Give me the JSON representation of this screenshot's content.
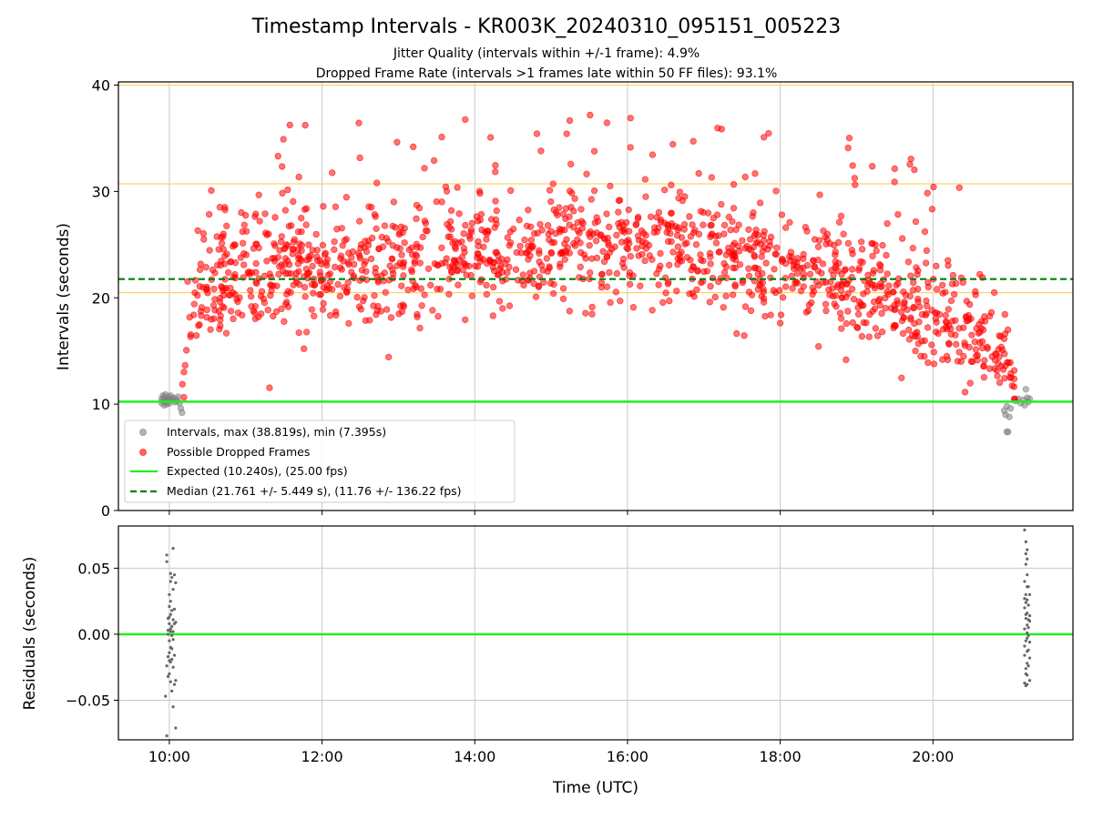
{
  "title": "Timestamp Intervals - KR003K_20240310_095151_005223",
  "subtitle_1": "Jitter Quality (intervals within +/-1 frame): 4.9%",
  "subtitle_2": "Dropped Frame Rate (intervals >1 frames late within 50 FF files): 93.1%",
  "colors": {
    "normal": "#808080",
    "dropped": "#ff0000",
    "expected": "#00ff00",
    "median": "#008000",
    "frame_band": "#ffd36a",
    "grid": "#c8c8c8"
  },
  "chart_data": [
    {
      "type": "scatter",
      "name": "intervals",
      "xlabel": "",
      "ylabel": "Intervals (seconds)",
      "xlim": [
        "09:20",
        "21:50"
      ],
      "ylim": [
        0,
        40.3
      ],
      "x_ticks": [
        "10:00",
        "12:00",
        "14:00",
        "16:00",
        "18:00",
        "20:00"
      ],
      "y_ticks": [
        0,
        10,
        20,
        30,
        40
      ],
      "grid": true,
      "frame_band_lines": [
        10.24,
        20.48,
        30.72,
        40.0
      ],
      "legend_position": "lower-left",
      "legend": [
        "Intervals, max (38.819s), min (7.395s)",
        "Possible Dropped Frames",
        "Expected (10.240s), (25.00 fps)",
        "Median (21.761 +/- 5.449 s), (11.76 +/- 136.22 fps)"
      ],
      "expected_value": 10.24,
      "median_value": 21.761,
      "max_value": 38.819,
      "min_value": 7.395,
      "series": [
        {
          "name": "Intervals, max (38.819s), min (7.395s)",
          "points": [
            [
              "09:54",
              10.5
            ],
            [
              "09:54",
              10.1
            ],
            [
              "09:55",
              10.8
            ],
            [
              "09:55",
              10.3
            ],
            [
              "09:56",
              9.9
            ],
            [
              "09:56",
              10.6
            ],
            [
              "09:57",
              10.2
            ],
            [
              "09:57",
              10.9
            ],
            [
              "09:58",
              10.4
            ],
            [
              "09:58",
              10.0
            ],
            [
              "09:59",
              10.7
            ],
            [
              "09:59",
              10.3
            ],
            [
              "10:00",
              10.5
            ],
            [
              "10:00",
              10.1
            ],
            [
              "10:01",
              10.8
            ],
            [
              "10:02",
              10.4
            ],
            [
              "10:03",
              10.6
            ],
            [
              "10:04",
              10.2
            ],
            [
              "10:05",
              10.5
            ],
            [
              "10:06",
              10.3
            ],
            [
              "10:07",
              10.7
            ],
            [
              "10:08",
              10.1
            ],
            [
              "10:09",
              9.6
            ],
            [
              "10:10",
              9.2
            ],
            [
              "20:56",
              9.4
            ],
            [
              "20:57",
              9.0
            ],
            [
              "20:58",
              9.8
            ],
            [
              "20:58",
              7.4
            ],
            [
              "20:59",
              7.4
            ],
            [
              "21:00",
              8.8
            ],
            [
              "21:01",
              9.6
            ],
            [
              "21:05",
              10.3
            ],
            [
              "21:07",
              10.5
            ],
            [
              "21:09",
              10.1
            ],
            [
              "21:11",
              10.4
            ],
            [
              "21:12",
              9.9
            ],
            [
              "21:13",
              11.4
            ],
            [
              "21:14",
              10.6
            ],
            [
              "21:15",
              10.2
            ],
            [
              "21:16",
              10.5
            ]
          ]
        },
        {
          "name": "Possible Dropped Frames",
          "trend": [
            [
              "10:10",
              11.5
            ],
            [
              "10:15",
              16.0
            ],
            [
              "10:20",
              19.5
            ],
            [
              "10:30",
              21.5
            ],
            [
              "11:00",
              22.3
            ],
            [
              "12:00",
              22.6
            ],
            [
              "13:00",
              23.2
            ],
            [
              "14:00",
              24.0
            ],
            [
              "15:00",
              24.8
            ],
            [
              "16:00",
              25.0
            ],
            [
              "16:30",
              25.3
            ],
            [
              "17:00",
              24.4
            ],
            [
              "17:30",
              23.5
            ],
            [
              "18:00",
              22.8
            ],
            [
              "18:30",
              22.0
            ],
            [
              "19:00",
              21.3
            ],
            [
              "19:30",
              20.0
            ],
            [
              "20:00",
              18.5
            ],
            [
              "20:30",
              16.6
            ],
            [
              "20:45",
              15.8
            ],
            [
              "21:00",
              13.5
            ],
            [
              "21:05",
              11.0
            ]
          ],
          "spread": 2.7,
          "count": 1450
        },
        {
          "name": "Expected (10.240s), (25.00 fps)",
          "value": 10.24
        },
        {
          "name": "Median (21.761 +/- 5.449 s), (11.76 +/- 136.22 fps)",
          "value": 21.761
        }
      ]
    },
    {
      "type": "scatter",
      "name": "residuals",
      "xlabel": "Time (UTC)",
      "ylabel": "Residuals (seconds)",
      "xlim": [
        "09:20",
        "21:50"
      ],
      "ylim": [
        -0.08,
        0.082
      ],
      "x_ticks": [
        "10:00",
        "12:00",
        "14:00",
        "16:00",
        "18:00",
        "20:00"
      ],
      "y_ticks": [
        0.05,
        0.0,
        -0.05
      ],
      "y_tick_labels": [
        "0.05",
        "0.00",
        "−0.05"
      ],
      "grid": true,
      "zero_line": 0.0,
      "series": [
        {
          "name": "residuals",
          "points": [
            [
              "09:58",
              0.06
            ],
            [
              "09:58",
              0.055
            ],
            [
              "09:59",
              0.012
            ],
            [
              "09:58",
              -0.024
            ],
            [
              "09:57",
              -0.047
            ],
            [
              "09:58",
              -0.077
            ],
            [
              "09:59",
              -0.032
            ],
            [
              "09:59",
              -0.017
            ],
            [
              "09:59",
              0.003
            ],
            [
              "10:00",
              0.03
            ],
            [
              "10:00",
              0.021
            ],
            [
              "10:00",
              0.008
            ],
            [
              "10:00",
              -0.005
            ],
            [
              "10:00",
              -0.014
            ],
            [
              "10:00",
              -0.03
            ],
            [
              "10:01",
              0.046
            ],
            [
              "10:01",
              0.04
            ],
            [
              "10:01",
              0.025
            ],
            [
              "10:01",
              0.015
            ],
            [
              "10:01",
              0.002
            ],
            [
              "10:01",
              -0.01
            ],
            [
              "10:01",
              -0.021
            ],
            [
              "10:01",
              -0.036
            ],
            [
              "10:02",
              0.043
            ],
            [
              "10:02",
              0.018
            ],
            [
              "10:02",
              0.006
            ],
            [
              "10:02",
              -0.011
            ],
            [
              "10:02",
              -0.019
            ],
            [
              "10:02",
              -0.043
            ],
            [
              "10:03",
              0.065
            ],
            [
              "10:03",
              0.034
            ],
            [
              "10:03",
              0.011
            ],
            [
              "10:03",
              -0.004
            ],
            [
              "10:03",
              -0.025
            ],
            [
              "10:03",
              -0.055
            ],
            [
              "10:04",
              0.045
            ],
            [
              "10:04",
              0.019
            ],
            [
              "10:04",
              0.008
            ],
            [
              "10:04",
              -0.016
            ],
            [
              "10:04",
              -0.038
            ],
            [
              "10:05",
              0.039
            ],
            [
              "10:05",
              0.009
            ],
            [
              "10:05",
              -0.035
            ],
            [
              "10:05",
              -0.071
            ],
            [
              "10:00",
              0.013
            ],
            [
              "10:01",
              0.004
            ],
            [
              "10:02",
              -0.001
            ],
            [
              "09:59",
              0.0
            ],
            [
              "10:03",
              0.002
            ],
            [
              "10:00",
              -0.02
            ],
            [
              "21:12",
              0.079
            ],
            [
              "21:13",
              0.07
            ],
            [
              "21:13",
              0.061
            ],
            [
              "21:13",
              0.053
            ],
            [
              "21:12",
              0.04
            ],
            [
              "21:13",
              0.03
            ],
            [
              "21:12",
              0.02
            ],
            [
              "21:13",
              0.012
            ],
            [
              "21:12",
              0.004
            ],
            [
              "21:13",
              -0.005
            ],
            [
              "21:12",
              -0.016
            ],
            [
              "21:13",
              -0.026
            ],
            [
              "21:12",
              -0.037
            ],
            [
              "21:13",
              -0.039
            ],
            [
              "21:14",
              0.064
            ],
            [
              "21:14",
              0.057
            ],
            [
              "21:14",
              0.045
            ],
            [
              "21:14",
              0.036
            ],
            [
              "21:14",
              0.026
            ],
            [
              "21:14",
              0.016
            ],
            [
              "21:14",
              0.007
            ],
            [
              "21:14",
              -0.003
            ],
            [
              "21:14",
              -0.013
            ],
            [
              "21:14",
              -0.022
            ],
            [
              "21:14",
              -0.031
            ],
            [
              "21:14",
              -0.038
            ],
            [
              "21:15",
              0.036
            ],
            [
              "21:15",
              0.022
            ],
            [
              "21:15",
              0.011
            ],
            [
              "21:15",
              -0.001
            ],
            [
              "21:15",
              -0.012
            ],
            [
              "21:15",
              -0.024
            ],
            [
              "21:16",
              0.03
            ],
            [
              "21:16",
              0.014
            ],
            [
              "21:16",
              -0.006
            ],
            [
              "21:16",
              -0.018
            ],
            [
              "21:16",
              -0.035
            ],
            [
              "21:13",
              0.015
            ],
            [
              "21:12",
              -0.009
            ],
            [
              "21:13",
              -0.03
            ],
            [
              "21:15",
              0.005
            ],
            [
              "21:14",
              0.001
            ],
            [
              "21:13",
              0.024
            ],
            [
              "21:16",
              0.01
            ],
            [
              "21:12",
              0.027
            ]
          ]
        },
        {
          "name": "zero",
          "value": 0.0
        }
      ]
    }
  ]
}
